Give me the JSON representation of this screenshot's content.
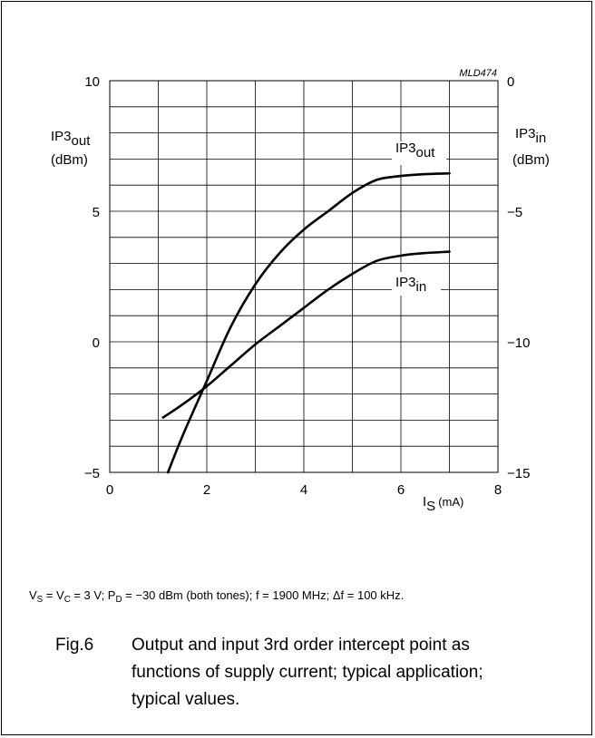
{
  "chart_data": {
    "type": "line",
    "code": "MLD474",
    "x_axis": {
      "ticks": [
        "0",
        "2",
        "4",
        "6",
        "8"
      ],
      "xlim": [
        0,
        8
      ],
      "label_main": "I",
      "label_sub": "S",
      "label_unit": "(mA)"
    },
    "y_left": {
      "ticks": [
        "10",
        "5",
        "0",
        "−5"
      ],
      "ylim": [
        -5,
        10
      ],
      "label_main": "IP3",
      "label_sub": "out",
      "label_unit": "(dBm)"
    },
    "y_right": {
      "ticks": [
        "0",
        "−5",
        "−10",
        "−15"
      ],
      "ylim": [
        -15,
        0
      ],
      "label_main": "IP3",
      "label_sub": "in",
      "label_unit": "(dBm)"
    },
    "grid": true,
    "series": [
      {
        "name_main": "IP3",
        "name_sub": "out",
        "axis": "left",
        "x": [
          1.2,
          1.5,
          2.0,
          2.5,
          3.0,
          3.5,
          4.0,
          4.5,
          5.0,
          5.5,
          6.0,
          6.5,
          7.0
        ],
        "y": [
          -5.0,
          -3.6,
          -1.5,
          0.6,
          2.2,
          3.4,
          4.3,
          5.0,
          5.7,
          6.2,
          6.35,
          6.42,
          6.45
        ]
      },
      {
        "name_main": "IP3",
        "name_sub": "in",
        "axis": "right",
        "x": [
          1.1,
          1.5,
          2.0,
          2.5,
          3.0,
          3.5,
          4.0,
          4.5,
          5.0,
          5.5,
          6.0,
          6.5,
          7.0
        ],
        "y": [
          -12.9,
          -12.4,
          -11.7,
          -10.9,
          -10.1,
          -9.4,
          -8.7,
          -8.0,
          -7.4,
          -6.9,
          -6.7,
          -6.6,
          -6.55
        ]
      }
    ]
  },
  "conditions": {
    "vs_main": "V",
    "vs_sub": "S",
    "vc_eq": " = V",
    "vc_sub": "C",
    "pd_part": " = 3 V; P",
    "pd_sub": "D",
    "rest": " = −30 dBm (both tones); f = 1900 MHz; Δf = 100 kHz."
  },
  "caption": {
    "figure_number": "Fig.6",
    "text": "Output and input 3rd order intercept point as functions of supply current; typical application; typical values."
  }
}
